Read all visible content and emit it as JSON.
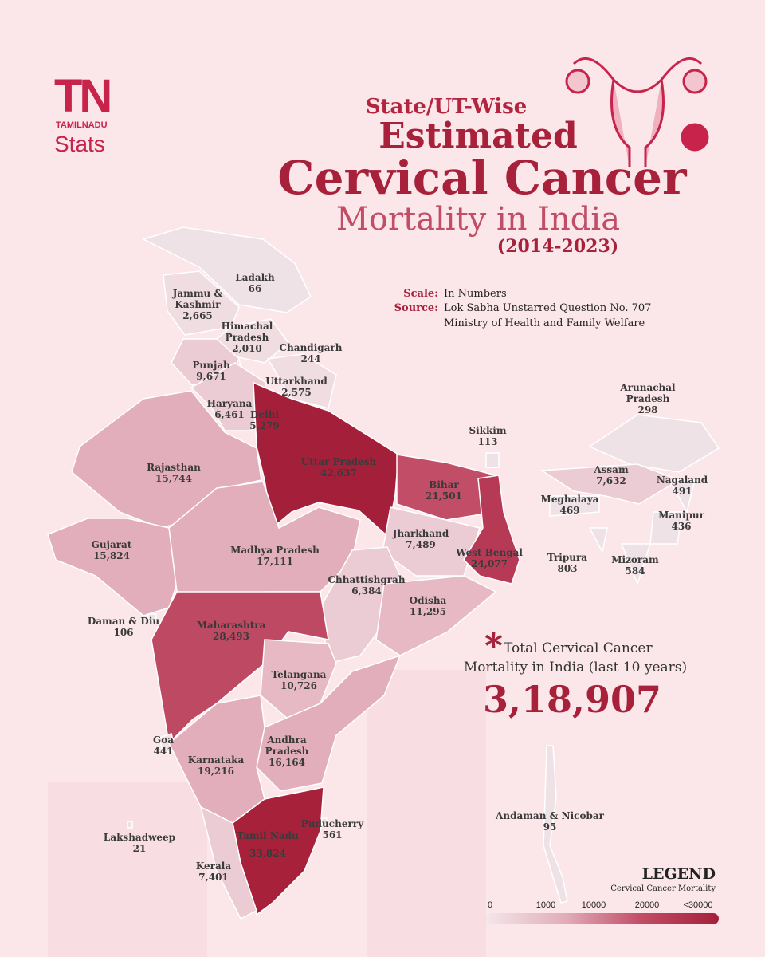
{
  "brand": {
    "logo": "TN",
    "tagline": "TAMILNADU",
    "name": "Stats"
  },
  "title": {
    "line1": "State/UT-Wise",
    "line2": "Estimated",
    "line3": "Cervical Cancer",
    "line4": "Mortality in India",
    "period": "(2014-2023)"
  },
  "scale": {
    "label": "Scale:",
    "text": "In Numbers"
  },
  "source": {
    "label": "Source:",
    "lines": [
      "Lok Sabha Unstarred Question No. 707",
      "Ministry of Health and Family Welfare"
    ]
  },
  "regions": [
    {
      "name": [
        "Ladakh"
      ],
      "value": "66",
      "color": "#efe2e6"
    },
    {
      "name": [
        "Jammu &",
        "Kashmir"
      ],
      "value": "2,665",
      "color": "#f0dde2"
    },
    {
      "name": [
        "Himachal",
        "Pradesh"
      ],
      "value": "2,010",
      "color": "#f0dde2"
    },
    {
      "name": [
        "Chandigarh"
      ],
      "value": "244",
      "color": "#efe2e6"
    },
    {
      "name": [
        "Punjab"
      ],
      "value": "9,671",
      "color": "#ecccd4"
    },
    {
      "name": [
        "Uttarkhand"
      ],
      "value": "2,575",
      "color": "#f0dde2"
    },
    {
      "name": [
        "Haryana"
      ],
      "value": "6,461",
      "color": "#ecccd4"
    },
    {
      "name": [
        "Delhi"
      ],
      "value": "5,279",
      "color": "#a8213a"
    },
    {
      "name": [
        "Uttar Pradesh"
      ],
      "value": "42,637",
      "color": "#a4203a"
    },
    {
      "name": [
        "Rajasthan"
      ],
      "value": "15,744",
      "color": "#e2aebb"
    },
    {
      "name": [
        "Bihar"
      ],
      "value": "21,501",
      "color": "#c14d66"
    },
    {
      "name": [
        "Sikkim"
      ],
      "value": "113",
      "color": "#efe2e6"
    },
    {
      "name": [
        "Arunachal",
        "Pradesh"
      ],
      "value": "298",
      "color": "#efe2e6"
    },
    {
      "name": [
        "Assam"
      ],
      "value": "7,632",
      "color": "#ecccd4"
    },
    {
      "name": [
        "Nagaland"
      ],
      "value": "491",
      "color": "#efe2e6"
    },
    {
      "name": [
        "Meghalaya"
      ],
      "value": "469",
      "color": "#efe2e6"
    },
    {
      "name": [
        "Manipur"
      ],
      "value": "436",
      "color": "#efe2e6"
    },
    {
      "name": [
        "Jharkhand"
      ],
      "value": "7,489",
      "color": "#ecccd4"
    },
    {
      "name": [
        "West Bengal"
      ],
      "value": "24,077",
      "color": "#b63a55"
    },
    {
      "name": [
        "Tripura"
      ],
      "value": "803",
      "color": "#efe2e6"
    },
    {
      "name": [
        "Mizoram"
      ],
      "value": "584",
      "color": "#efe2e6"
    },
    {
      "name": [
        "Gujarat"
      ],
      "value": "15,824",
      "color": "#e2aebb"
    },
    {
      "name": [
        "Madhya Pradesh"
      ],
      "value": "17,111",
      "color": "#e2aebb"
    },
    {
      "name": [
        "Chhattishgrah"
      ],
      "value": "6,384",
      "color": "#ecccd4"
    },
    {
      "name": [
        "Odisha"
      ],
      "value": "11,295",
      "color": "#e6b9c4"
    },
    {
      "name": [
        "Daman & Diu"
      ],
      "value": "106",
      "color": "#efe2e6"
    },
    {
      "name": [
        "Maharashtra"
      ],
      "value": "28,493",
      "color": "#bd4a62"
    },
    {
      "name": [
        "Telangana"
      ],
      "value": "10,726",
      "color": "#e6b9c4"
    },
    {
      "name": [
        "Goa"
      ],
      "value": "441",
      "color": "#efe2e6"
    },
    {
      "name": [
        "Andhra",
        "Pradesh"
      ],
      "value": "16,164",
      "color": "#e2aebb"
    },
    {
      "name": [
        "Karnataka"
      ],
      "value": "19,216",
      "color": "#e2aebb"
    },
    {
      "name": [
        "Puducherry"
      ],
      "value": "561",
      "color": "#efe2e6"
    },
    {
      "name": [
        "Tamil Nadu"
      ],
      "value": "33,824",
      "color": "#a8213a"
    },
    {
      "name": [
        "Lakshadweep"
      ],
      "value": "21",
      "color": "#efe2e6"
    },
    {
      "name": [
        "Kerala"
      ],
      "value": "7,401",
      "color": "#ecccd4"
    },
    {
      "name": [
        "Andaman & Nicobar"
      ],
      "value": "95",
      "color": "#efe2e6"
    }
  ],
  "total": {
    "marker": "*",
    "lines": [
      "Total Cervical Cancer",
      "Mortality in India (last 10 years)"
    ],
    "value": "3,18,907"
  },
  "legend": {
    "title": "LEGEND",
    "subtitle": "Cervical Cancer Mortality",
    "ticks": [
      "0",
      "1000",
      "10000",
      "20000",
      "<30000"
    ],
    "colors": [
      "#f3e6ea",
      "#e2aebb",
      "#c14d66",
      "#a4203a"
    ]
  }
}
